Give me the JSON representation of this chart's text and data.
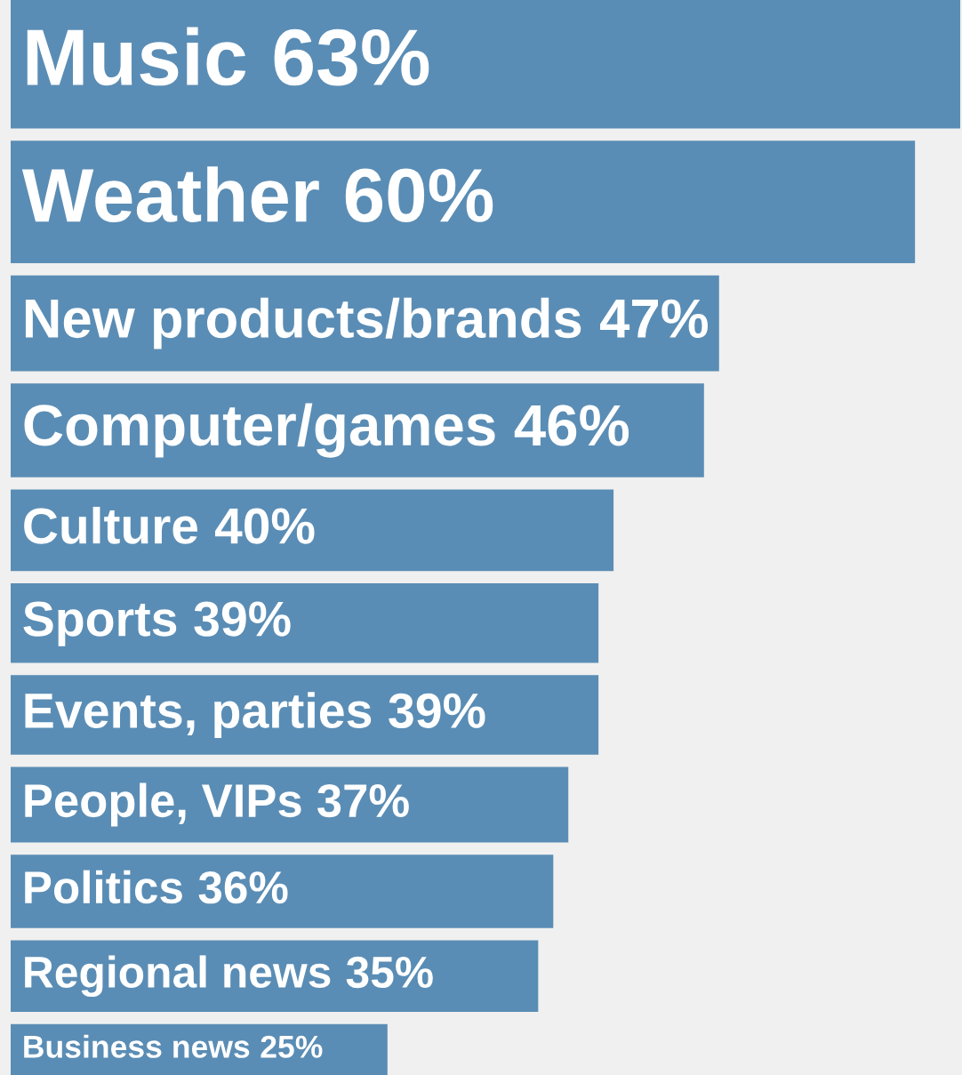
{
  "chart_data": {
    "type": "bar",
    "orientation": "horizontal",
    "data_labels": true,
    "categories": [
      "Music",
      "Weather",
      "New products/brands",
      "Computer/games",
      "Culture",
      "Sports",
      "Events, parties",
      "People, VIPs",
      "Politics",
      "Regional news",
      "Business news"
    ],
    "values": [
      63,
      60,
      47,
      46,
      40,
      39,
      39,
      37,
      36,
      35,
      25
    ],
    "value_labels": [
      "63%",
      "60%",
      "47%",
      "46%",
      "40%",
      "39%",
      "39%",
      "37%",
      "36%",
      "35%",
      "25%"
    ],
    "color": "#5a8db5"
  }
}
